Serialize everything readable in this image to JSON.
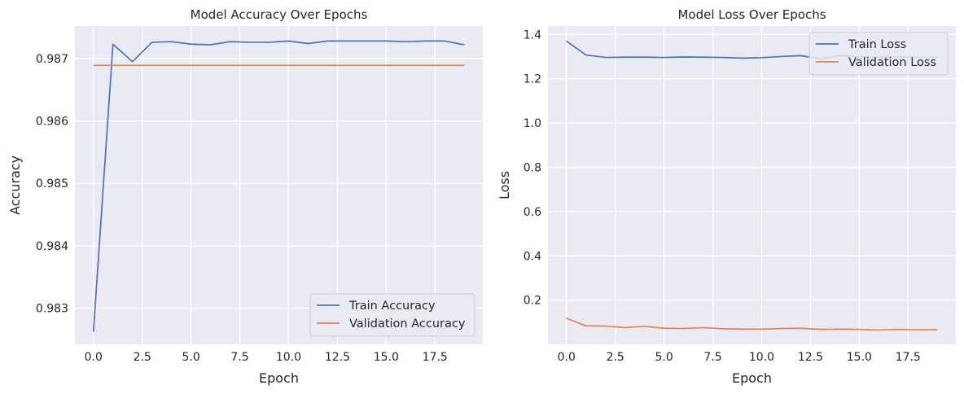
{
  "chart_data": [
    {
      "type": "line",
      "title": "Model Accuracy Over Epochs",
      "xlabel": "Epoch",
      "ylabel": "Accuracy",
      "xlim": [
        -0.95,
        19.95
      ],
      "ylim": [
        0.98242,
        0.98752
      ],
      "xticks": [
        0.0,
        2.5,
        5.0,
        7.5,
        10.0,
        12.5,
        15.0,
        17.5
      ],
      "xtick_labels": [
        "0.0",
        "2.5",
        "5.0",
        "7.5",
        "10.0",
        "12.5",
        "15.0",
        "17.5"
      ],
      "yticks": [
        0.983,
        0.984,
        0.985,
        0.986,
        0.987
      ],
      "ytick_labels": [
        "0.983",
        "0.984",
        "0.985",
        "0.986",
        "0.987"
      ],
      "grid": true,
      "legend_position": "bottom-right",
      "x": [
        0,
        1,
        2,
        3,
        4,
        5,
        6,
        7,
        8,
        9,
        10,
        11,
        12,
        13,
        14,
        15,
        16,
        17,
        18,
        19
      ],
      "series": [
        {
          "name": "Train Accuracy",
          "color": "#4c72b0",
          "values": [
            0.98262,
            0.98723,
            0.98695,
            0.98726,
            0.98727,
            0.98723,
            0.98722,
            0.98727,
            0.98726,
            0.98726,
            0.98728,
            0.98724,
            0.98728,
            0.98728,
            0.98728,
            0.98728,
            0.98727,
            0.98728,
            0.98728,
            0.98722
          ]
        },
        {
          "name": "Validation Accuracy",
          "color": "#dd8452",
          "values": [
            0.98689,
            0.98689,
            0.98689,
            0.98689,
            0.98689,
            0.98689,
            0.98689,
            0.98689,
            0.98689,
            0.98689,
            0.98689,
            0.98689,
            0.98689,
            0.98689,
            0.98689,
            0.98689,
            0.98689,
            0.98689,
            0.98689,
            0.98689
          ]
        }
      ]
    },
    {
      "type": "line",
      "title": "Model Loss Over Epochs",
      "xlabel": "Epoch",
      "ylabel": "Loss",
      "xlim": [
        -0.95,
        19.95
      ],
      "ylim": [
        0.0005,
        1.4377
      ],
      "xticks": [
        0.0,
        2.5,
        5.0,
        7.5,
        10.0,
        12.5,
        15.0,
        17.5
      ],
      "xtick_labels": [
        "0.0",
        "2.5",
        "5.0",
        "7.5",
        "10.0",
        "12.5",
        "15.0",
        "17.5"
      ],
      "yticks": [
        0.2,
        0.4,
        0.6,
        0.8,
        1.0,
        1.2,
        1.4
      ],
      "ytick_labels": [
        "0.2",
        "0.4",
        "0.6",
        "0.8",
        "1.0",
        "1.2",
        "1.4"
      ],
      "grid": true,
      "legend_position": "top-right",
      "x": [
        0,
        1,
        2,
        3,
        4,
        5,
        6,
        7,
        8,
        9,
        10,
        11,
        12,
        13,
        14,
        15,
        16,
        17,
        18,
        19
      ],
      "series": [
        {
          "name": "Train Loss",
          "color": "#4c72b0",
          "values": [
            1.37,
            1.307,
            1.296,
            1.297,
            1.297,
            1.296,
            1.298,
            1.297,
            1.296,
            1.293,
            1.295,
            1.3,
            1.304,
            1.29,
            1.305,
            1.298,
            1.297,
            1.298,
            1.296,
            1.296
          ]
        },
        {
          "name": "Validation Loss",
          "color": "#dd8452",
          "values": [
            0.118,
            0.084,
            0.083,
            0.076,
            0.082,
            0.073,
            0.072,
            0.076,
            0.071,
            0.069,
            0.069,
            0.072,
            0.073,
            0.068,
            0.069,
            0.068,
            0.065,
            0.068,
            0.066,
            0.067
          ]
        }
      ]
    }
  ]
}
